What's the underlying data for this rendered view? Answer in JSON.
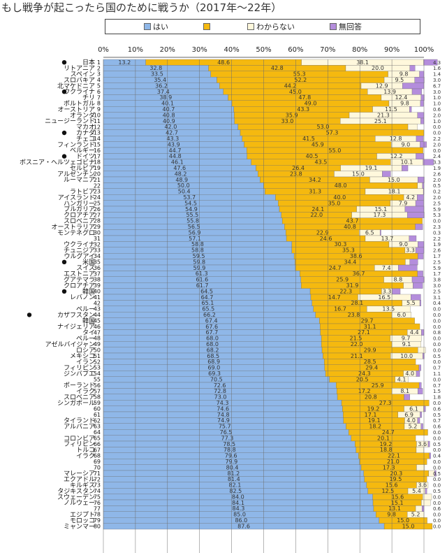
{
  "title": "もし戦争が起こったら国のために戦うか（2017年～22年）",
  "legend": [
    {
      "label": "はい",
      "color": "#8fb7e8"
    },
    {
      "label": "",
      "color": "#f5b90f"
    },
    {
      "label": "わからない",
      "color": "#fff8dc"
    },
    {
      "label": "無回答",
      "color": "#b48ddc"
    }
  ],
  "chart_data": {
    "type": "bar",
    "orientation": "horizontal",
    "stacked": true,
    "title": "もし戦争が起こったら国のために戦うか（2017年～22年）",
    "xlim": [
      0,
      100
    ],
    "x_ticks": [
      "0%",
      "10%",
      "20%",
      "30%",
      "40%",
      "50%",
      "60%",
      "70%",
      "80%",
      "90%",
      "100%"
    ],
    "grid": true,
    "legend_position": "top",
    "categories": [
      "日本",
      "リトアニア",
      "スペイン",
      "スロバキア",
      "北マケドニア",
      "ウクライナ",
      "チリ",
      "ポルトガル",
      "オーストリア",
      "オランダ",
      "ニュージーランド",
      "マカオ",
      "カナダ",
      "チェコ",
      "フィンランド",
      "ベルギー",
      "ドイツ",
      "ボスニア・ヘルツェゴビナ",
      "セルビア",
      "アルゼンチン",
      "ルーマニア",
      "",
      "ラトビア",
      "アイスランド",
      "ハンガリー",
      "ブルガリア",
      "クロアチア",
      "スロベニア",
      "オーストラリア",
      "モンテネグロ",
      "",
      "ウクライナ",
      "チュニジア",
      "ウルグアイ",
      "米国",
      "スイス",
      "エストニア",
      "グアテマラ",
      "クロアチア",
      "韓国",
      "レバノン",
      "",
      "ペルー",
      "カザフスタン",
      "韓国",
      "ナイジェリア",
      "タイ",
      "ペルー",
      "アゼルバイジャン",
      "ロシア",
      "メキシコ",
      "イラン",
      "フィリピン",
      "ジンバブエ",
      "",
      "ポーランド",
      "イラク",
      "スロベニア",
      "シンガポール",
      "",
      "",
      "タイランド",
      "アルバニア",
      "",
      "コロンビア",
      "フィリピン",
      "トルコ",
      "イラク",
      "",
      "",
      "マレーシア",
      "エクアドル",
      "キルギス",
      "タジキスタン",
      "スウェーデン",
      "ノルウェー",
      "",
      "エジプト",
      "モロッコ",
      "ミャンマー"
    ],
    "series": [
      {
        "name": "はい",
        "values": [
          13.2,
          32.8,
          33.5,
          35.4,
          36.2,
          37.4,
          38.9,
          40.1,
          40.7,
          40.8,
          40.9,
          42.0,
          42.7,
          43.3,
          43.9,
          44.7,
          44.8,
          46.1,
          47.6,
          48.2,
          48.9,
          50.0,
          50.4,
          53.7,
          54.5,
          54.9,
          55.5,
          55.8,
          56.5,
          56.9,
          57.1,
          58.8,
          58.8,
          59.5,
          59.8,
          59.9,
          61.3,
          61.6,
          61.7,
          64.5,
          64.7,
          65.1,
          65.5,
          66.2,
          67.4,
          67.6,
          67.7,
          68.0,
          68.0,
          68.2,
          68.5,
          68.9,
          69.0,
          69.3,
          70.5,
          72.6,
          72.8,
          73.0,
          74.3,
          74.6,
          74.8,
          74.9,
          75.7,
          76.5,
          77.3,
          78.5,
          78.8,
          79.6,
          79.9,
          80.4,
          81.2,
          81.4,
          82.1,
          82.5,
          84.0,
          84.1,
          84.3,
          85.0,
          86.0,
          87.6
        ]
      },
      {
        "name": "",
        "values": [
          48.6,
          42.8,
          55.3,
          52.2,
          44.2,
          45.0,
          47.8,
          49.0,
          43.3,
          35.9,
          33.0,
          53.0,
          57.3,
          41.5,
          45.9,
          55.0,
          40.5,
          43.5,
          26.4,
          23.8,
          34.2,
          48.0,
          31.3,
          40.0,
          35.0,
          24.1,
          22.0,
          43.7,
          40.8,
          22.9,
          24.6,
          30.3,
          35.3,
          38.6,
          34.4,
          24.7,
          36.7,
          25.9,
          31.9,
          22.3,
          14.7,
          28.1,
          16.7,
          23.8,
          29.7,
          31.1,
          27.1,
          21.5,
          22.0,
          29.9,
          21.1,
          28.5,
          29.4,
          24.3,
          20.5,
          25.9,
          17.2,
          20.8,
          27.3,
          19.2,
          17.1,
          19.1,
          18.2,
          24.7,
          20.1,
          19.2,
          18.8,
          22.1,
          21.0,
          17.3,
          20.3,
          19.5,
          15.6,
          12.5,
          15.6,
          15.1,
          13.1,
          9.8,
          15.0,
          15.0
        ]
      },
      {
        "name": "わからない",
        "values": [
          38.1,
          20.0,
          9.8,
          9.5,
          12.9,
          13.9,
          12.4,
          9.8,
          11.5,
          21.3,
          25.1,
          3.0,
          0.0,
          12.8,
          9.0,
          0.0,
          12.2,
          10.1,
          19.1,
          15.0,
          15.0,
          1.5,
          18.1,
          4.2,
          7.9,
          15.1,
          17.3,
          0.0,
          0.0,
          6.5,
          13.7,
          9.0,
          3.3,
          0.0,
          1.4,
          7.4,
          0.0,
          8.8,
          3.0,
          3.3,
          16.5,
          5.5,
          13.5,
          6.0,
          0.0,
          0.0,
          4.4,
          9.7,
          9.1,
          2.4,
          10.0,
          0.0,
          0.0,
          4.0,
          4.1,
          0.0,
          8.1,
          0.0,
          0.0,
          6.1,
          6.9,
          4.0,
          5.2,
          0.0,
          0.0,
          3.6,
          2.3,
          0.0,
          0.0,
          2.5,
          1.8,
          0.0,
          3.6,
          5.4,
          2.8,
          2.8,
          2.0,
          5.2,
          0.0,
          0.0
        ]
      },
      {
        "name": "無回答",
        "values": [
          4.3,
          1.6,
          1.4,
          3.0,
          6.7,
          3.0,
          1.0,
          1.0,
          0.6,
          2.0,
          1.0,
          0.0,
          0.0,
          2.2,
          2.0,
          0.0,
          2.4,
          3.3,
          1.9,
          2.6,
          2.0,
          0.5,
          0.2,
          2.0,
          2.5,
          5.9,
          5.3,
          0.0,
          2.3,
          0.3,
          2.2,
          1.9,
          2.6,
          1.7,
          2.5,
          5.9,
          1.7,
          3.8,
          3.0,
          2.5,
          3.1,
          0.4,
          0.0,
          0.0,
          0.0,
          0.0,
          0.8,
          0.0,
          0.0,
          0.0,
          0.5,
          0.0,
          0.7,
          1.1,
          0.0,
          0.7,
          1.5,
          1.8,
          0.0,
          0.6,
          0.5,
          0.7,
          0.6,
          0.0,
          0.0,
          0.5,
          0.0,
          0.4,
          0.0,
          0.0,
          0.5,
          0.0,
          0.0,
          0.5,
          0.0,
          0.0,
          0.6,
          0.0,
          0.0,
          0.0
        ]
      }
    ]
  }
}
